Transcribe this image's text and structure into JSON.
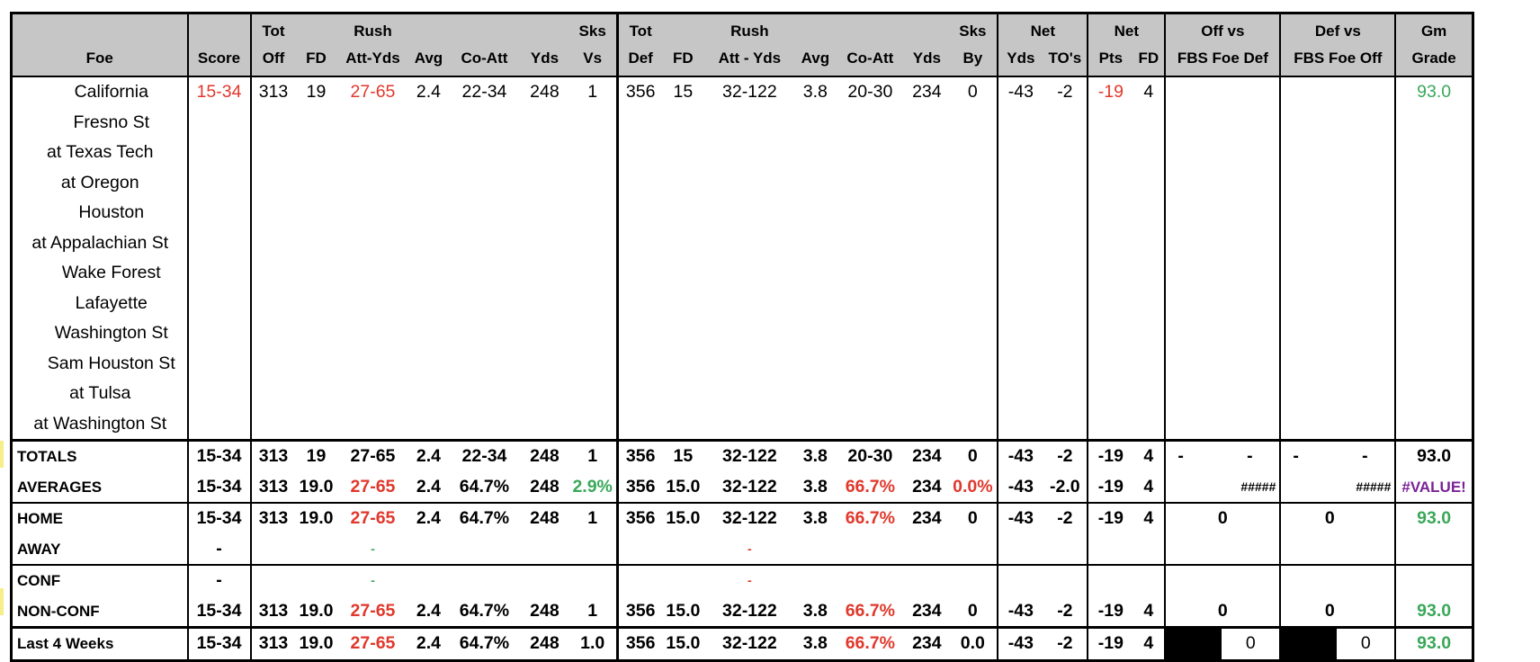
{
  "headers": {
    "row1": {
      "tot_off": "Tot",
      "rush_off": "Rush",
      "sks_vs": "Sks",
      "tot_def": "Tot",
      "rush_def": "Rush",
      "sks_by": "Sks",
      "net1": "Net",
      "net2": "Net",
      "off_vs": "Off vs",
      "def_vs": "Def vs",
      "gm": "Gm"
    },
    "row2": {
      "foe": "Foe",
      "score": "Score",
      "off": "Off",
      "fd": "FD",
      "att_yds": "Att-Yds",
      "avg": "Avg",
      "co_att": "Co-Att",
      "yds": "Yds",
      "vs": "Vs",
      "def": "Def",
      "fd2": "FD",
      "att_yds2": "Att - Yds",
      "avg2": "Avg",
      "co_att2": "Co-Att",
      "yds2": "Yds",
      "by": "By",
      "net_yds": "Yds",
      "tos": "TO's",
      "pts": "Pts",
      "net_fd": "FD",
      "fbs_foe_def": "FBS Foe Def",
      "fbs_foe_off": "FBS Foe Off",
      "grade": "Grade"
    }
  },
  "games": [
    {
      "foe": "California",
      "home": true,
      "score": "15-34",
      "tot_off": "313",
      "fd": "19",
      "rush": "27-65",
      "avg": "2.4",
      "co_att": "22-34",
      "yds": "248",
      "sks_vs": "1",
      "tot_def": "356",
      "fd_d": "15",
      "rush_d": "32-122",
      "avg_d": "3.8",
      "co_att_d": "20-30",
      "yds_d": "234",
      "sks_by": "0",
      "net_yds": "-43",
      "tos": "-2",
      "net_pts": "-19",
      "net_fd": "4",
      "grade": "93.0"
    },
    {
      "foe": "Fresno St",
      "home": true
    },
    {
      "foe": "at Texas Tech",
      "home": false
    },
    {
      "foe": "at Oregon",
      "home": false
    },
    {
      "foe": "Houston",
      "home": true
    },
    {
      "foe": "at Appalachian St",
      "home": false
    },
    {
      "foe": "Wake Forest",
      "home": true
    },
    {
      "foe": "Lafayette",
      "home": true
    },
    {
      "foe": "Washington St",
      "home": true
    },
    {
      "foe": "Sam Houston St",
      "home": true
    },
    {
      "foe": "at Tulsa",
      "home": false
    },
    {
      "foe": "at Washington St",
      "home": false
    }
  ],
  "summary": {
    "totals": {
      "label": "TOTALS",
      "score": "15-34",
      "tot_off": "313",
      "fd": "19",
      "rush": "27-65",
      "avg": "2.4",
      "co_att": "22-34",
      "yds": "248",
      "sks_vs": "1",
      "tot_def": "356",
      "fd_d": "15",
      "rush_d": "32-122",
      "avg_d": "3.8",
      "co_att_d": "20-30",
      "yds_d": "234",
      "sks_by": "0",
      "net_yds": "-43",
      "tos": "-2",
      "net_pts": "-19",
      "net_fd": "4",
      "off_a": "-",
      "off_b": "-",
      "def_a": "-",
      "def_b": "-",
      "grade": "93.0"
    },
    "averages": {
      "label": "AVERAGES",
      "score": "15-34",
      "tot_off": "313",
      "fd": "19.0",
      "rush": "27-65",
      "avg": "2.4",
      "co_att": "64.7%",
      "yds": "248",
      "sks_vs": "2.9%",
      "tot_def": "356",
      "fd_d": "15.0",
      "rush_d": "32-122",
      "avg_d": "3.8",
      "co_att_d": "66.7%",
      "yds_d": "234",
      "sks_by": "0.0%",
      "net_yds": "-43",
      "tos": "-2.0",
      "net_pts": "-19",
      "net_fd": "4",
      "off_vs": "#####",
      "def_vs": "#####",
      "grade": "#VALUE!"
    },
    "home": {
      "label": "HOME",
      "score": "15-34",
      "tot_off": "313",
      "fd": "19.0",
      "rush": "27-65",
      "avg": "2.4",
      "co_att": "64.7%",
      "yds": "248",
      "sks_vs": "1",
      "tot_def": "356",
      "fd_d": "15.0",
      "rush_d": "32-122",
      "avg_d": "3.8",
      "co_att_d": "66.7%",
      "yds_d": "234",
      "sks_by": "0",
      "net_yds": "-43",
      "tos": "-2",
      "net_pts": "-19",
      "net_fd": "4",
      "off_vs": "0",
      "def_vs": "0",
      "grade": "93.0"
    },
    "away": {
      "label": "AWAY",
      "score": "-",
      "rush": "-",
      "rush_d": "-"
    },
    "conf": {
      "label": "CONF",
      "score": "-",
      "rush": "-",
      "rush_d": "-"
    },
    "nonconf": {
      "label": "NON-CONF",
      "score": "15-34",
      "tot_off": "313",
      "fd": "19.0",
      "rush": "27-65",
      "avg": "2.4",
      "co_att": "64.7%",
      "yds": "248",
      "sks_vs": "1",
      "tot_def": "356",
      "fd_d": "15.0",
      "rush_d": "32-122",
      "avg_d": "3.8",
      "co_att_d": "66.7%",
      "yds_d": "234",
      "sks_by": "0",
      "net_yds": "-43",
      "tos": "-2",
      "net_pts": "-19",
      "net_fd": "4",
      "off_vs": "0",
      "def_vs": "0",
      "grade": "93.0"
    },
    "last4": {
      "label": "Last 4 Weeks",
      "score": "15-34",
      "tot_off": "313",
      "fd": "19.0",
      "rush": "27-65",
      "avg": "2.4",
      "co_att": "64.7%",
      "yds": "248",
      "sks_vs": "1.0",
      "tot_def": "356",
      "fd_d": "15.0",
      "rush_d": "32-122",
      "avg_d": "3.8",
      "co_att_d": "66.7%",
      "yds_d": "234",
      "sks_by": "0.0",
      "net_yds": "-43",
      "tos": "-2",
      "net_pts": "-19",
      "net_fd": "4",
      "off_vs": "0",
      "def_vs": "0",
      "grade": "93.0"
    }
  }
}
